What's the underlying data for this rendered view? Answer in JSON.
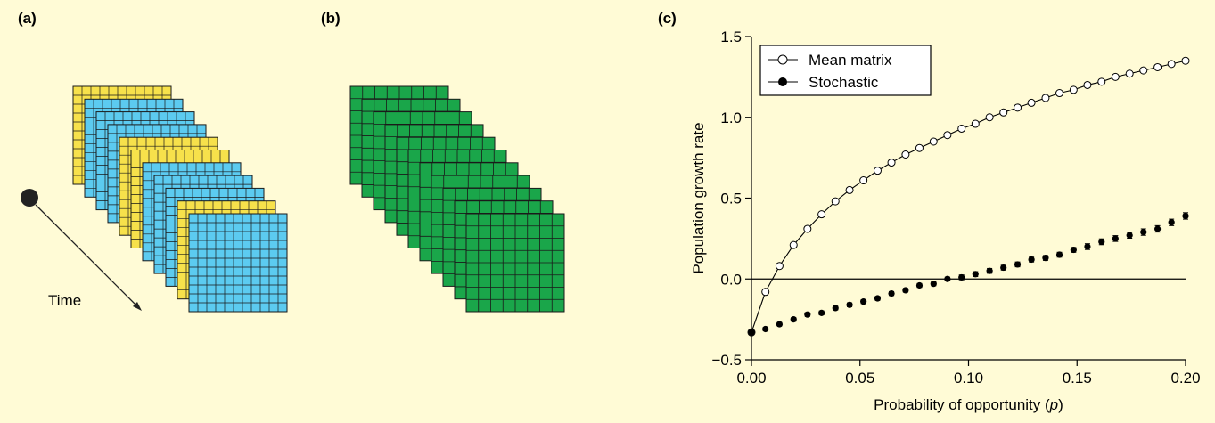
{
  "panels": {
    "a": {
      "label": "(a)",
      "time_label": "Time",
      "stack_colors": [
        "yellow",
        "blue",
        "blue",
        "blue",
        "yellow",
        "yellow",
        "blue",
        "blue",
        "blue",
        "yellow",
        "blue"
      ]
    },
    "b": {
      "label": "(b)",
      "stack_count": 11
    },
    "c": {
      "label": "(c)"
    }
  },
  "colors": {
    "background": "#fffbd6",
    "yellow": "#f7e14b",
    "blue": "#5ccbf0",
    "green": "#1aa64a"
  },
  "chart_data": {
    "type": "line",
    "xlabel_main": "Probability of opportunity (",
    "xlabel_var": "p",
    "xlabel_end": ")",
    "ylabel": "Population growth rate",
    "xlim": [
      0,
      0.2
    ],
    "ylim": [
      -0.5,
      1.5
    ],
    "xticks": [
      0,
      0.05,
      0.1,
      0.15,
      0.2
    ],
    "xtick_labels": [
      "0.00",
      "0.05",
      "0.10",
      "0.15",
      "0.20"
    ],
    "yticks": [
      -0.5,
      0,
      0.5,
      1.0,
      1.5
    ],
    "ytick_labels": [
      "−0.5",
      "0.0",
      "0.5",
      "1.0",
      "1.5"
    ],
    "reference_line_y": 0,
    "legend_position": "top-left",
    "series": [
      {
        "name": "Mean matrix",
        "marker": "open-circle",
        "x": [
          0,
          0.00645,
          0.0129,
          0.0194,
          0.0258,
          0.0323,
          0.0387,
          0.0452,
          0.0516,
          0.0581,
          0.0645,
          0.071,
          0.0774,
          0.0839,
          0.0903,
          0.0968,
          0.1032,
          0.1097,
          0.1161,
          0.1226,
          0.129,
          0.1355,
          0.1419,
          0.1484,
          0.1548,
          0.1613,
          0.1677,
          0.1742,
          0.1806,
          0.1871,
          0.1935,
          0.2
        ],
        "y": [
          -0.33,
          -0.08,
          0.08,
          0.21,
          0.31,
          0.4,
          0.48,
          0.55,
          0.61,
          0.67,
          0.72,
          0.77,
          0.81,
          0.85,
          0.89,
          0.93,
          0.96,
          1.0,
          1.03,
          1.06,
          1.09,
          1.12,
          1.15,
          1.17,
          1.2,
          1.22,
          1.25,
          1.27,
          1.29,
          1.31,
          1.33,
          1.35
        ]
      },
      {
        "name": "Stochastic",
        "marker": "filled-circle",
        "x": [
          0,
          0.00645,
          0.0129,
          0.0194,
          0.0258,
          0.0323,
          0.0387,
          0.0452,
          0.0516,
          0.0581,
          0.0645,
          0.071,
          0.0774,
          0.0839,
          0.0903,
          0.0968,
          0.1032,
          0.1097,
          0.1161,
          0.1226,
          0.129,
          0.1355,
          0.1419,
          0.1484,
          0.1548,
          0.1613,
          0.1677,
          0.1742,
          0.1806,
          0.1871,
          0.1935,
          0.2
        ],
        "y": [
          -0.33,
          -0.31,
          -0.28,
          -0.25,
          -0.22,
          -0.21,
          -0.18,
          -0.16,
          -0.14,
          -0.12,
          -0.09,
          -0.07,
          -0.04,
          -0.03,
          0.0,
          0.01,
          0.03,
          0.05,
          0.07,
          0.09,
          0.12,
          0.13,
          0.15,
          0.18,
          0.2,
          0.23,
          0.25,
          0.27,
          0.29,
          0.31,
          0.35,
          0.39
        ],
        "err": [
          0.01,
          0.01,
          0.01,
          0.012,
          0.012,
          0.012,
          0.012,
          0.012,
          0.012,
          0.012,
          0.012,
          0.012,
          0.012,
          0.012,
          0.012,
          0.015,
          0.015,
          0.015,
          0.015,
          0.015,
          0.015,
          0.015,
          0.015,
          0.015,
          0.018,
          0.018,
          0.018,
          0.018,
          0.02,
          0.02,
          0.02,
          0.02
        ]
      }
    ]
  }
}
